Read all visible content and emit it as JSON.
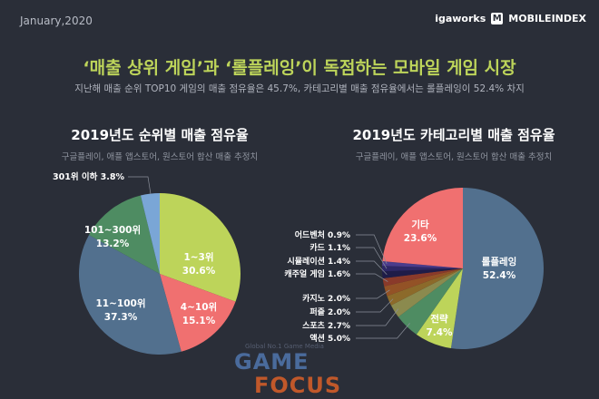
{
  "header": {
    "date": "January,2020",
    "brand_igaworks": "igaworks",
    "brand_mobileindex": "MOBILEINDEX",
    "brand_mark": "M"
  },
  "title": "‘매출 상위 게임’과 ‘롤플레잉’이 독점하는 모바일 게임 시장",
  "subtitle": "지난해 매출 순위 TOP10 게임의 매출 점유율은 45.7%, 카테고리별 매출 점유율에서는 롤플레잉이 52.4% 차지",
  "watermark": {
    "tagline": "Global No.1 Game Media",
    "line1": "GAME",
    "line2": "FOCUS"
  },
  "chart_data": [
    {
      "type": "pie",
      "title": "2019년도 순위별 매출 점유율",
      "subtitle": "구글플레이, 애플 앱스토어, 원스토어 합산 매출 추정치",
      "slices": [
        {
          "label": "1~3위",
          "value": 30.6,
          "value_label": "30.6%",
          "color": "#bdd45a"
        },
        {
          "label": "4~10위",
          "value": 15.1,
          "value_label": "15.1%",
          "color": "#f07070"
        },
        {
          "label": "11~100위",
          "value": 37.3,
          "value_label": "37.3%",
          "color": "#52708e"
        },
        {
          "label": "101~300위",
          "value": 13.2,
          "value_label": "13.2%",
          "color": "#4e8c62"
        },
        {
          "label": "301위 이하",
          "value": 3.8,
          "value_label": "3.8%",
          "color": "#7aa6d6"
        }
      ]
    },
    {
      "type": "pie",
      "title": "2019년도 카테고리별 매출 점유율",
      "subtitle": "구글플레이, 애플 앱스토어, 원스토어 합산 매출 추정치",
      "slices": [
        {
          "label": "롤플레잉",
          "value": 52.4,
          "value_label": "52.4%",
          "color": "#52708e"
        },
        {
          "label": "전략",
          "value": 7.4,
          "value_label": "7.4%",
          "color": "#bdd45a"
        },
        {
          "label": "액션",
          "value": 5.0,
          "value_label": "5.0%",
          "color": "#4e8c62"
        },
        {
          "label": "스포츠",
          "value": 2.7,
          "value_label": "2.7%",
          "color": "#8b8a4e"
        },
        {
          "label": "퍼즐",
          "value": 2.0,
          "value_label": "2.0%",
          "color": "#8c6a2a"
        },
        {
          "label": "카지노",
          "value": 2.0,
          "value_label": "2.0%",
          "color": "#935226"
        },
        {
          "label": "캐주얼 게임",
          "value": 1.6,
          "value_label": "1.6%",
          "color": "#8a3a2a"
        },
        {
          "label": "시뮬레이션",
          "value": 1.4,
          "value_label": "1.4%",
          "color": "#1f1c48"
        },
        {
          "label": "카드",
          "value": 1.1,
          "value_label": "1.1%",
          "color": "#2e2766"
        },
        {
          "label": "어드벤처",
          "value": 0.9,
          "value_label": "0.9%",
          "color": "#4b3c8c"
        },
        {
          "label": "기타",
          "value": 23.6,
          "value_label": "23.6%",
          "color": "#f07070"
        }
      ]
    }
  ]
}
